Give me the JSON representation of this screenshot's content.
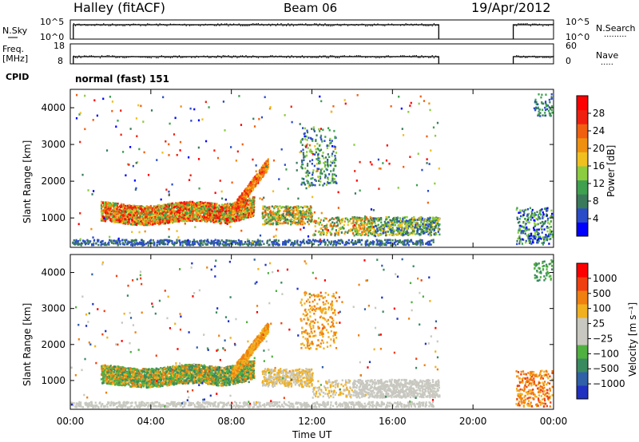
{
  "header": {
    "title": "Halley (fitACF)",
    "beam": "Beam 06",
    "date": "19/Apr/2012"
  },
  "noise_panel": {
    "left_label": "N.Sky",
    "left_ticks": [
      "10^5",
      "10^0"
    ],
    "right_ticks": [
      "10^5",
      "10^0"
    ],
    "right_label": "N.Search"
  },
  "freq_panel": {
    "left_label_1": "Freq.",
    "left_label_2": "[MHz]",
    "left_ticks": [
      "18",
      "8"
    ],
    "right_ticks": [
      "60",
      "0"
    ],
    "right_label": "Nave"
  },
  "cpid": {
    "label": "CPID",
    "value": "normal (fast) 151"
  },
  "chart_data": [
    {
      "type": "heatmap",
      "name": "power",
      "ylabel": "Slant Range [km]",
      "y_ticks": [
        1000,
        2000,
        3000,
        4000
      ],
      "ylim": [
        200,
        4500
      ],
      "x_ticks": [
        "00:00",
        "04:00",
        "08:00",
        "12:00",
        "16:00",
        "20:00",
        "00:00"
      ],
      "xlim_hours": [
        0,
        24
      ],
      "colorbar": {
        "label": "Power [dB]",
        "ticks": [
          "28",
          "24",
          "20",
          "16",
          "12",
          "8",
          "4"
        ],
        "colors": [
          "#0000ff",
          "#2b4cc8",
          "#3a7a5a",
          "#3fa050",
          "#8ccc40",
          "#f0c020",
          "#f09010",
          "#f06010",
          "#f02010",
          "#ff0000"
        ]
      },
      "data_gaps_hours": [
        [
          18.3,
          22.0
        ]
      ]
    },
    {
      "type": "heatmap",
      "name": "velocity",
      "ylabel": "Slant Range [km]",
      "y_ticks": [
        1000,
        2000,
        3000,
        4000
      ],
      "ylim": [
        200,
        4500
      ],
      "x_ticks": [
        "00:00",
        "04:00",
        "08:00",
        "12:00",
        "16:00",
        "20:00",
        "00:00"
      ],
      "xlim_hours": [
        0,
        24
      ],
      "xlabel": "Time UT",
      "colorbar": {
        "label": "Velocity [m s⁻¹]",
        "ticks": [
          "1000",
          "500",
          "100",
          "25",
          "−25",
          "−100",
          "−500",
          "−1000"
        ],
        "colors": [
          "#2030c0",
          "#3060a8",
          "#3a8a60",
          "#50b040",
          "#c8c8c0",
          "#c8c8c0",
          "#f0b020",
          "#f08010",
          "#f04010",
          "#ff0000"
        ]
      },
      "data_gaps_hours": [
        [
          18.3,
          22.0
        ]
      ]
    }
  ]
}
